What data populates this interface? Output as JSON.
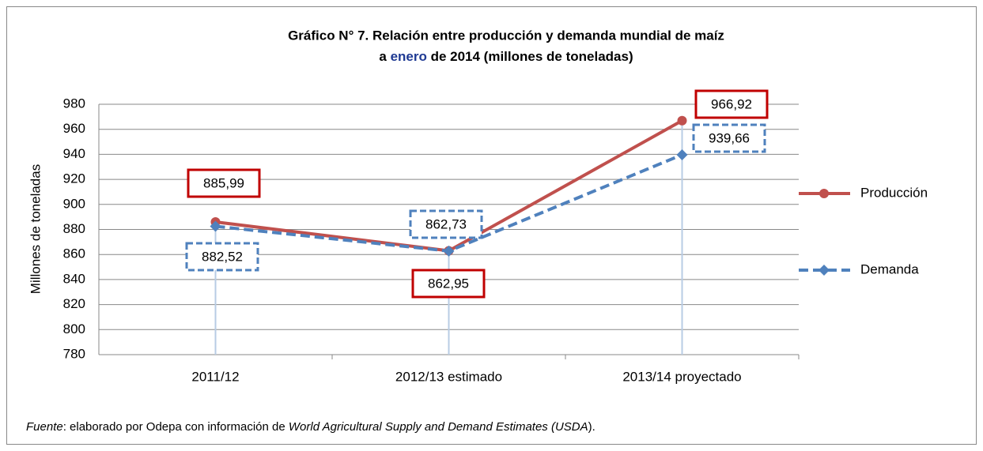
{
  "chart_data": {
    "type": "line",
    "title": "Gráfico N° 7. Relación entre producción y demanda mundial de maíz",
    "subtitle": [
      "a ",
      "enero",
      " de 2014  (millones de toneladas)"
    ],
    "y_label": "Millones de toneladas",
    "categories": [
      "2011/12",
      "2012/13 estimado",
      "2013/14 proyectado"
    ],
    "series": [
      {
        "name": "Producción",
        "color": "#c0504d",
        "values": [
          885.99,
          862.95,
          966.92
        ],
        "value_labels": [
          "885,99",
          "862,95",
          "966,92"
        ]
      },
      {
        "name": "Demanda",
        "color": "#4f81bd",
        "values": [
          882.52,
          862.73,
          939.66
        ],
        "value_labels": [
          "882,52",
          "862,73",
          "939,66"
        ]
      }
    ],
    "ylim": [
      780,
      980
    ],
    "yticks": [
      780,
      800,
      820,
      840,
      860,
      880,
      900,
      920,
      940,
      960,
      980
    ],
    "grid": true,
    "legend": "right",
    "source": [
      "Fuente",
      ": elaborado por Odepa con información de ",
      "World Agricultural Supply and Demand Estimates  (USDA",
      ")."
    ]
  }
}
